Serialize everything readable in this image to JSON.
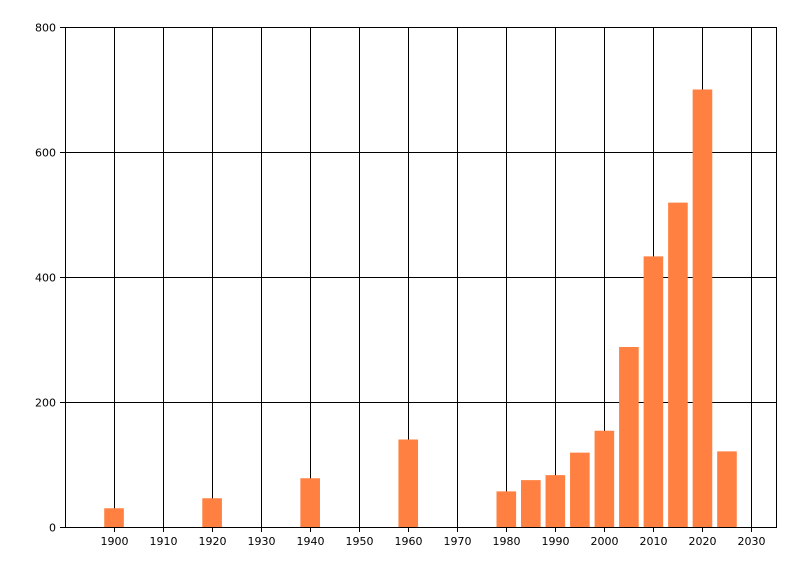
{
  "chart_data": {
    "type": "bar",
    "title": "",
    "xlabel": "",
    "ylabel": "",
    "xlim": [
      1890,
      2035
    ],
    "ylim": [
      0,
      800
    ],
    "x_ticks": [
      1900,
      1910,
      1920,
      1930,
      1940,
      1950,
      1960,
      1970,
      1980,
      1990,
      2000,
      2010,
      2020,
      2030
    ],
    "y_ticks": [
      0,
      200,
      400,
      600,
      800
    ],
    "grid": true,
    "bar_width_years": 4,
    "bar_color": "#FF8040",
    "x": [
      1900,
      1920,
      1940,
      1960,
      1980,
      1985,
      1990,
      1995,
      2000,
      2005,
      2010,
      2015,
      2020,
      2025
    ],
    "values": [
      30,
      46,
      78,
      140,
      57,
      75,
      83,
      119,
      154,
      288,
      433,
      519,
      700,
      121
    ]
  }
}
